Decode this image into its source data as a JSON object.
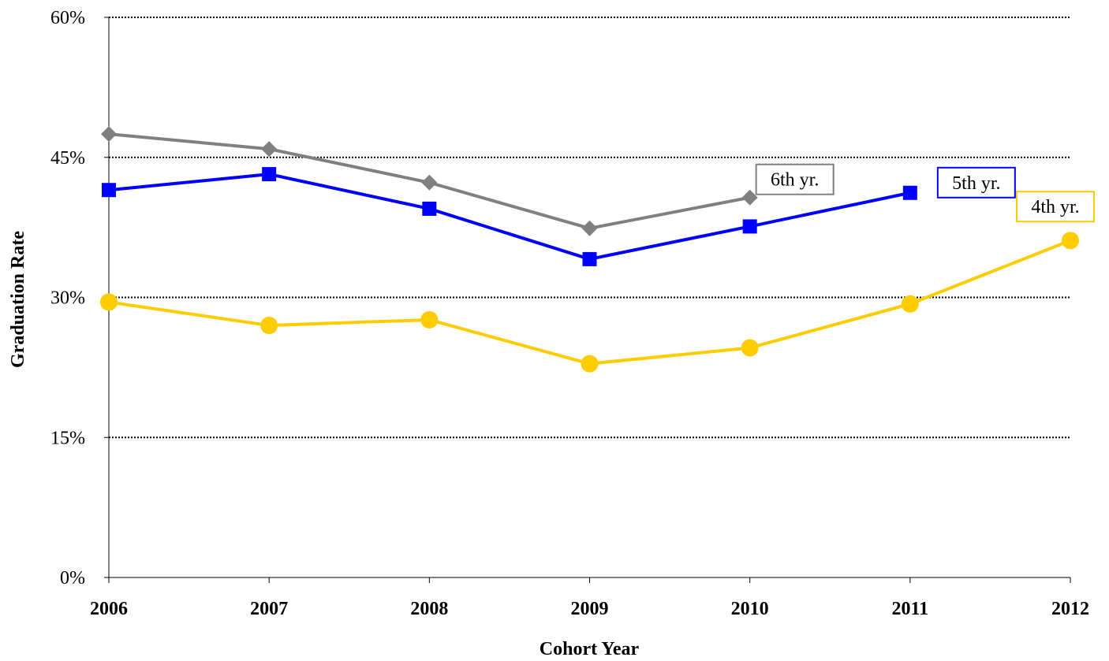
{
  "chart_data": {
    "type": "line",
    "title": "",
    "xlabel": "Cohort Year",
    "ylabel": "Graduation Rate",
    "x": [
      "2006",
      "2007",
      "2008",
      "2009",
      "2010",
      "2011",
      "2012"
    ],
    "ylim": [
      0,
      60
    ],
    "yticks": [
      0,
      15,
      30,
      45,
      60
    ],
    "ytick_labels": [
      "0%",
      "15%",
      "30%",
      "45%",
      "60%"
    ],
    "grid": "horizontal dotted",
    "legend": "none (series labeled inline)",
    "series": [
      {
        "name": "6th yr.",
        "color": "#808080",
        "marker": "diamond",
        "values": [
          47.5,
          45.9,
          42.3,
          37.4,
          40.7,
          null,
          null
        ]
      },
      {
        "name": "5th yr.",
        "color": "#0000ff",
        "marker": "square",
        "values": [
          41.5,
          43.2,
          39.5,
          34.1,
          37.6,
          41.2,
          null
        ]
      },
      {
        "name": "4th yr.",
        "color": "#ffcc00",
        "marker": "circle",
        "values": [
          29.5,
          27.0,
          27.6,
          22.9,
          24.6,
          29.3,
          36.1
        ]
      }
    ]
  }
}
